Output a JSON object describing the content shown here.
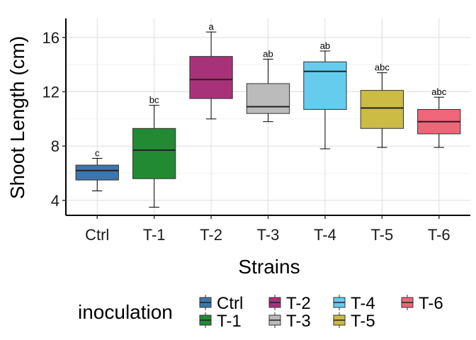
{
  "chart_data": {
    "type": "box",
    "xlabel": "Strains",
    "ylabel": "Shoot Length (cm)",
    "ylim": [
      2.9,
      17.4
    ],
    "yticks": [
      4,
      8,
      12,
      16
    ],
    "grid": true,
    "legend_title": "inoculation",
    "legend_position": "bottom",
    "categories": [
      "Ctrl",
      "T-1",
      "T-2",
      "T-3",
      "T-4",
      "T-5",
      "T-6"
    ],
    "boxes": [
      {
        "name": "Ctrl",
        "min": 4.7,
        "q1": 5.5,
        "median": 6.2,
        "q3": 6.6,
        "max": 7.1,
        "label": "c",
        "color": "#3E75AB"
      },
      {
        "name": "T-1",
        "min": 3.5,
        "q1": 5.6,
        "median": 7.7,
        "q3": 9.3,
        "max": 11.0,
        "label": "bc",
        "color": "#238A34"
      },
      {
        "name": "T-2",
        "min": 10.0,
        "q1": 11.5,
        "median": 12.9,
        "q3": 14.6,
        "max": 16.4,
        "label": "a",
        "color": "#A8327A"
      },
      {
        "name": "T-3",
        "min": 9.8,
        "q1": 10.4,
        "median": 10.9,
        "q3": 12.6,
        "max": 14.4,
        "label": "ab",
        "color": "#BBBBBB"
      },
      {
        "name": "T-4",
        "min": 7.8,
        "q1": 10.7,
        "median": 13.5,
        "q3": 14.2,
        "max": 15.0,
        "label": "ab",
        "color": "#66CCEE"
      },
      {
        "name": "T-5",
        "min": 7.9,
        "q1": 9.3,
        "median": 10.8,
        "q3": 12.1,
        "max": 13.4,
        "label": "abc",
        "color": "#CCBB44"
      },
      {
        "name": "T-6",
        "min": 7.9,
        "q1": 8.9,
        "median": 9.8,
        "q3": 10.7,
        "max": 11.6,
        "label": "abc",
        "color": "#EE6677"
      }
    ]
  }
}
